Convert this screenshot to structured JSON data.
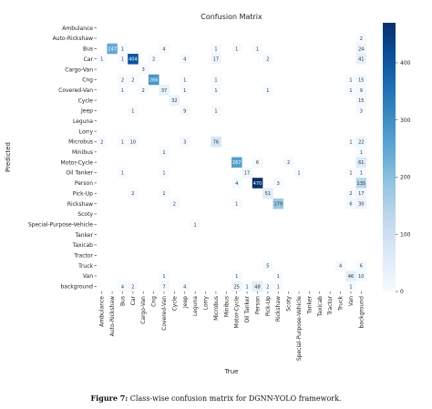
{
  "chart_data": {
    "type": "heatmap",
    "title": "Confusion Matrix",
    "xlabel": "True",
    "ylabel": "Predicted",
    "categories": [
      "Ambulance",
      "Auto-Rickshaw",
      "Bus",
      "Car",
      "Cargo-Van",
      "Cng",
      "Covered-Van",
      "Cycle",
      "Jeep",
      "Leguna",
      "Lorry",
      "Microbus",
      "Minibus",
      "Motor-Cycle",
      "Oil Tanker",
      "Person",
      "Pick-Up",
      "Rickshaw",
      "Scoty",
      "Special-Purpose-Vehicle",
      "Tanker",
      "Taxicab",
      "Tractor",
      "Truck",
      "Van",
      "background"
    ],
    "colorbar": {
      "range": [
        0,
        470
      ],
      "ticks": [
        0,
        100,
        200,
        300,
        400
      ],
      "colormap": "Blues"
    },
    "cells": [
      [
        1,
        25,
        2
      ],
      [
        2,
        1,
        247
      ],
      [
        2,
        2,
        1
      ],
      [
        2,
        6,
        4
      ],
      [
        2,
        11,
        1
      ],
      [
        2,
        13,
        1
      ],
      [
        2,
        15,
        1
      ],
      [
        2,
        25,
        24
      ],
      [
        3,
        0,
        1
      ],
      [
        3,
        2,
        1
      ],
      [
        3,
        3,
        404
      ],
      [
        3,
        5,
        2
      ],
      [
        3,
        8,
        4
      ],
      [
        3,
        11,
        17
      ],
      [
        3,
        16,
        2
      ],
      [
        3,
        25,
        41
      ],
      [
        4,
        4,
        3
      ],
      [
        5,
        2,
        2
      ],
      [
        5,
        3,
        2
      ],
      [
        5,
        5,
        286
      ],
      [
        5,
        8,
        1
      ],
      [
        5,
        11,
        1
      ],
      [
        5,
        24,
        1
      ],
      [
        5,
        25,
        15
      ],
      [
        6,
        2,
        1
      ],
      [
        6,
        4,
        2
      ],
      [
        6,
        6,
        37
      ],
      [
        6,
        8,
        1
      ],
      [
        6,
        11,
        1
      ],
      [
        6,
        16,
        1
      ],
      [
        6,
        24,
        1
      ],
      [
        6,
        25,
        9
      ],
      [
        7,
        7,
        32
      ],
      [
        7,
        25,
        15
      ],
      [
        8,
        3,
        1
      ],
      [
        8,
        8,
        9
      ],
      [
        8,
        11,
        1
      ],
      [
        8,
        25,
        3
      ],
      [
        11,
        0,
        2
      ],
      [
        11,
        2,
        1
      ],
      [
        11,
        3,
        10
      ],
      [
        11,
        8,
        3
      ],
      [
        11,
        11,
        76
      ],
      [
        11,
        24,
        1
      ],
      [
        11,
        25,
        22
      ],
      [
        12,
        6,
        1
      ],
      [
        12,
        25,
        1
      ],
      [
        13,
        13,
        267
      ],
      [
        13,
        15,
        6
      ],
      [
        13,
        18,
        2
      ],
      [
        13,
        25,
        61
      ],
      [
        14,
        2,
        1
      ],
      [
        14,
        6,
        1
      ],
      [
        14,
        14,
        17
      ],
      [
        14,
        19,
        1
      ],
      [
        14,
        24,
        1
      ],
      [
        14,
        25,
        1
      ],
      [
        15,
        13,
        4
      ],
      [
        15,
        15,
        470
      ],
      [
        15,
        17,
        3
      ],
      [
        15,
        25,
        135
      ],
      [
        16,
        3,
        2
      ],
      [
        16,
        6,
        1
      ],
      [
        16,
        16,
        51
      ],
      [
        16,
        24,
        2
      ],
      [
        16,
        25,
        17
      ],
      [
        17,
        7,
        2
      ],
      [
        17,
        13,
        1
      ],
      [
        17,
        17,
        179
      ],
      [
        17,
        24,
        6
      ],
      [
        17,
        25,
        30
      ],
      [
        19,
        9,
        1
      ],
      [
        23,
        16,
        5
      ],
      [
        23,
        23,
        4
      ],
      [
        23,
        25,
        6
      ],
      [
        24,
        6,
        1
      ],
      [
        24,
        13,
        1
      ],
      [
        24,
        17,
        1
      ],
      [
        24,
        24,
        46
      ],
      [
        24,
        25,
        10
      ],
      [
        25,
        2,
        4
      ],
      [
        25,
        3,
        2
      ],
      [
        25,
        6,
        7
      ],
      [
        25,
        8,
        4
      ],
      [
        25,
        13,
        25
      ],
      [
        25,
        14,
        1
      ],
      [
        25,
        15,
        48
      ],
      [
        25,
        16,
        2
      ],
      [
        25,
        17,
        1
      ],
      [
        25,
        24,
        1
      ]
    ]
  },
  "caption": {
    "label": "Figure 7:",
    "text": "Class-wise confusion matrix for DGNN-YOLO framework."
  }
}
